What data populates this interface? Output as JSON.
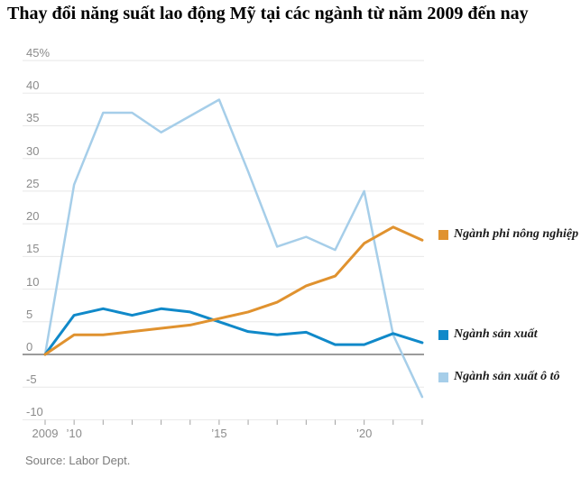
{
  "page": {
    "title": "Thay đổi năng suất lao động Mỹ tại các ngành từ năm 2009 đến nay",
    "source": "Source: Labor Dept."
  },
  "chart_data": {
    "type": "line",
    "title": "Thay đổi năng suất lao động Mỹ tại các ngành từ năm 2009 đến nay",
    "xlabel": "",
    "ylabel": "%",
    "x": [
      2009,
      2010,
      2011,
      2012,
      2013,
      2014,
      2015,
      2016,
      2017,
      2018,
      2019,
      2020,
      2021,
      2022
    ],
    "x_tick_labels": [
      {
        "label": "2009",
        "year": 2009
      },
      {
        "label": "’10",
        "year": 2010
      },
      {
        "label": "’15",
        "year": 2015
      },
      {
        "label": "’20",
        "year": 2020
      }
    ],
    "y_ticks": [
      {
        "label": "45%",
        "value": 45
      },
      {
        "label": "40",
        "value": 40
      },
      {
        "label": "35",
        "value": 35
      },
      {
        "label": "30",
        "value": 30
      },
      {
        "label": "25",
        "value": 25
      },
      {
        "label": "20",
        "value": 20
      },
      {
        "label": "15",
        "value": 15
      },
      {
        "label": "10",
        "value": 10
      },
      {
        "label": "5",
        "value": 5
      },
      {
        "label": "0",
        "value": 0
      },
      {
        "label": "-5",
        "value": -5
      },
      {
        "label": "-10",
        "value": -10
      }
    ],
    "ylim": [
      -10,
      45
    ],
    "xlim": [
      2009,
      2022
    ],
    "grid": true,
    "legend_position": "right",
    "series": [
      {
        "name": "Ngành sản xuất ô tô",
        "color": "#a6cee9",
        "stroke_width": 2.5,
        "values": [
          0,
          26,
          37,
          37,
          34,
          36.5,
          39,
          28,
          16.5,
          18,
          16,
          25,
          3,
          -6.5
        ]
      },
      {
        "name": "Ngành sản xuất",
        "color": "#1089c9",
        "stroke_width": 3,
        "values": [
          0,
          6,
          7,
          6,
          7,
          6.5,
          5,
          3.5,
          3,
          3.4,
          1.5,
          1.5,
          3.2,
          1.8
        ]
      },
      {
        "name": "Ngành phi nông nghiệp",
        "color": "#e0922f",
        "stroke_width": 3,
        "values": [
          0,
          3,
          3,
          3.5,
          4,
          4.5,
          5.5,
          6.5,
          8,
          10.5,
          12,
          17,
          19.5,
          17.5
        ]
      }
    ],
    "legend_entries": [
      {
        "series_index": 2,
        "label": "Ngành phi nông nghiệp"
      },
      {
        "series_index": 1,
        "label": "Ngành sản xuất"
      },
      {
        "series_index": 0,
        "label": "Ngành sản xuất ô tô"
      }
    ]
  },
  "colors": {
    "grid": "#e8e8e8",
    "zero_line": "#9b9b9b",
    "tick": "#a3a3a3",
    "axis_label": "#8b8b8b",
    "title": "#000000",
    "source": "#7b7b7b",
    "background": "#ffffff"
  }
}
